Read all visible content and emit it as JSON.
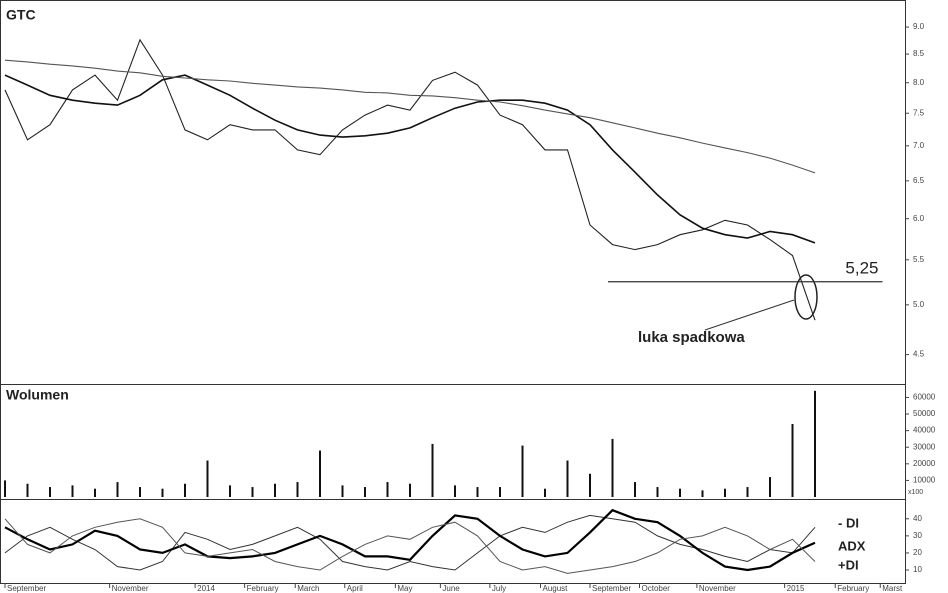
{
  "chart_data": [
    {
      "type": "line",
      "title": "GTC",
      "log_scale": true,
      "x": [
        0,
        2,
        4,
        6,
        8,
        10,
        12,
        14,
        16,
        18,
        20,
        22,
        24,
        26,
        28,
        30,
        32,
        34,
        36,
        38,
        40,
        42,
        44,
        46,
        48,
        50,
        52,
        54,
        56,
        58,
        60,
        62,
        64,
        66,
        68,
        70,
        72
      ],
      "xlim": [
        0,
        80
      ],
      "ylim": [
        4.22,
        9.43
      ],
      "yticks": [
        {
          "value": 9,
          "label": "9.0"
        },
        8.5,
        {
          "value": 8,
          "label": "8.0"
        },
        7.5,
        {
          "value": 7,
          "label": "7.0"
        },
        6.5,
        {
          "value": 6,
          "label": "6.0"
        },
        5.5,
        {
          "value": 5,
          "label": "5.0"
        },
        4.5
      ],
      "series": [
        {
          "color": "#222222",
          "values": [
            7.88,
            7.09,
            7.32,
            7.88,
            8.13,
            7.71,
            8.76,
            8.13,
            7.24,
            7.09,
            7.32,
            7.24,
            7.24,
            6.94,
            6.87,
            7.24,
            7.47,
            7.63,
            7.55,
            8.04,
            8.18,
            7.96,
            7.47,
            7.32,
            6.94,
            6.94,
            5.92,
            5.68,
            5.62,
            5.68,
            5.8,
            5.86,
            5.98,
            5.92,
            5.74,
            5.55,
            4.84
          ]
        },
        {
          "color": "#111111",
          "values": [
            8.13,
            7.96,
            7.79,
            7.71,
            7.66,
            7.63,
            7.79,
            8.05,
            8.13,
            7.96,
            7.79,
            7.58,
            7.39,
            7.24,
            7.16,
            7.13,
            7.15,
            7.19,
            7.27,
            7.43,
            7.58,
            7.68,
            7.71,
            7.71,
            7.66,
            7.55,
            7.32,
            6.94,
            6.62,
            6.31,
            6.05,
            5.88,
            5.8,
            5.76,
            5.84,
            5.8,
            5.7
          ]
        },
        {
          "color": "#555555",
          "values": [
            8.39,
            8.36,
            8.32,
            8.29,
            8.25,
            8.2,
            8.17,
            8.11,
            8.08,
            8.05,
            8.03,
            7.99,
            7.96,
            7.93,
            7.91,
            7.88,
            7.84,
            7.83,
            7.79,
            7.78,
            7.75,
            7.71,
            7.68,
            7.62,
            7.55,
            7.49,
            7.43,
            7.35,
            7.27,
            7.19,
            7.12,
            7.04,
            6.97,
            6.9,
            6.82,
            6.72,
            6.61
          ]
        }
      ],
      "support": {
        "value": 5.25,
        "label": "5,25",
        "from": 53.6,
        "to": 78
      },
      "gap_label": "luka spadkowa"
    },
    {
      "type": "bar",
      "title": "Wolumen",
      "unit_note": "x100",
      "color": "#111111",
      "x": [
        0,
        2,
        4,
        6,
        8,
        10,
        12,
        14,
        16,
        18,
        20,
        22,
        24,
        26,
        28,
        30,
        32,
        34,
        36,
        38,
        40,
        42,
        44,
        46,
        48,
        50,
        52,
        54,
        56,
        58,
        60,
        62,
        64,
        66,
        68,
        70,
        72
      ],
      "xlim": [
        0,
        80
      ],
      "ylim": [
        0,
        67500
      ],
      "yticks": [
        10000,
        20000,
        30000,
        40000,
        50000,
        60000
      ],
      "values": [
        10000,
        8000,
        6000,
        7000,
        5000,
        9000,
        6000,
        5000,
        8000,
        22000,
        7000,
        6000,
        8000,
        9000,
        28000,
        7000,
        6000,
        9000,
        8000,
        32000,
        7000,
        6000,
        6000,
        31000,
        5000,
        22000,
        14000,
        35000,
        9000,
        6000,
        5000,
        4000,
        5000,
        6000,
        12000,
        44000,
        64000
      ]
    },
    {
      "type": "line",
      "x": [
        0,
        2,
        4,
        6,
        8,
        10,
        12,
        14,
        16,
        18,
        20,
        22,
        24,
        26,
        28,
        30,
        32,
        34,
        36,
        38,
        40,
        42,
        44,
        46,
        48,
        50,
        52,
        54,
        56,
        58,
        60,
        62,
        64,
        66,
        68,
        70,
        72
      ],
      "xlim": [
        0,
        80
      ],
      "ylim": [
        2.4,
        51
      ],
      "yticks": [
        10,
        20,
        30,
        40
      ],
      "xticks": [
        {
          "value": 0,
          "label": "September"
        },
        {
          "value": 9.3,
          "label": "November"
        },
        {
          "value": 16.9,
          "label": "2014"
        },
        {
          "value": 21.3,
          "label": "February"
        },
        {
          "value": 25.8,
          "label": "March"
        },
        {
          "value": 30.2,
          "label": "April"
        },
        {
          "value": 34.7,
          "label": "May"
        },
        {
          "value": 38.7,
          "label": "June"
        },
        {
          "value": 43.1,
          "label": "July"
        },
        {
          "value": 47.6,
          "label": "August"
        },
        {
          "value": 52,
          "label": "September"
        },
        {
          "value": 56.4,
          "label": "October"
        },
        {
          "value": 61.5,
          "label": "November"
        },
        {
          "value": 69.3,
          "label": "2015"
        },
        {
          "value": 73.8,
          "label": "February"
        },
        {
          "value": 77.8,
          "label": "Marst"
        }
      ],
      "series": [
        {
          "name": "- DI",
          "color": "#333333",
          "values": [
            20,
            30,
            35,
            28,
            22,
            12,
            10,
            15,
            32,
            28,
            22,
            25,
            30,
            35,
            28,
            15,
            12,
            10,
            15,
            12,
            10,
            20,
            30,
            35,
            32,
            38,
            42,
            40,
            38,
            30,
            25,
            22,
            18,
            15,
            22,
            20,
            35
          ]
        },
        {
          "name": "ADX",
          "color": "#000000",
          "values": [
            35,
            28,
            22,
            25,
            33,
            30,
            22,
            20,
            25,
            18,
            17,
            18,
            20,
            25,
            30,
            25,
            18,
            18,
            16,
            30,
            42,
            40,
            30,
            22,
            18,
            20,
            32,
            45,
            40,
            38,
            30,
            20,
            12,
            10,
            12,
            20,
            26
          ]
        },
        {
          "name": "+DI",
          "color": "#555555",
          "values": [
            40,
            25,
            20,
            30,
            35,
            38,
            40,
            35,
            20,
            18,
            20,
            22,
            15,
            12,
            10,
            18,
            25,
            30,
            28,
            35,
            38,
            30,
            15,
            10,
            12,
            8,
            10,
            12,
            15,
            20,
            28,
            30,
            35,
            30,
            22,
            28,
            15
          ]
        }
      ]
    }
  ]
}
